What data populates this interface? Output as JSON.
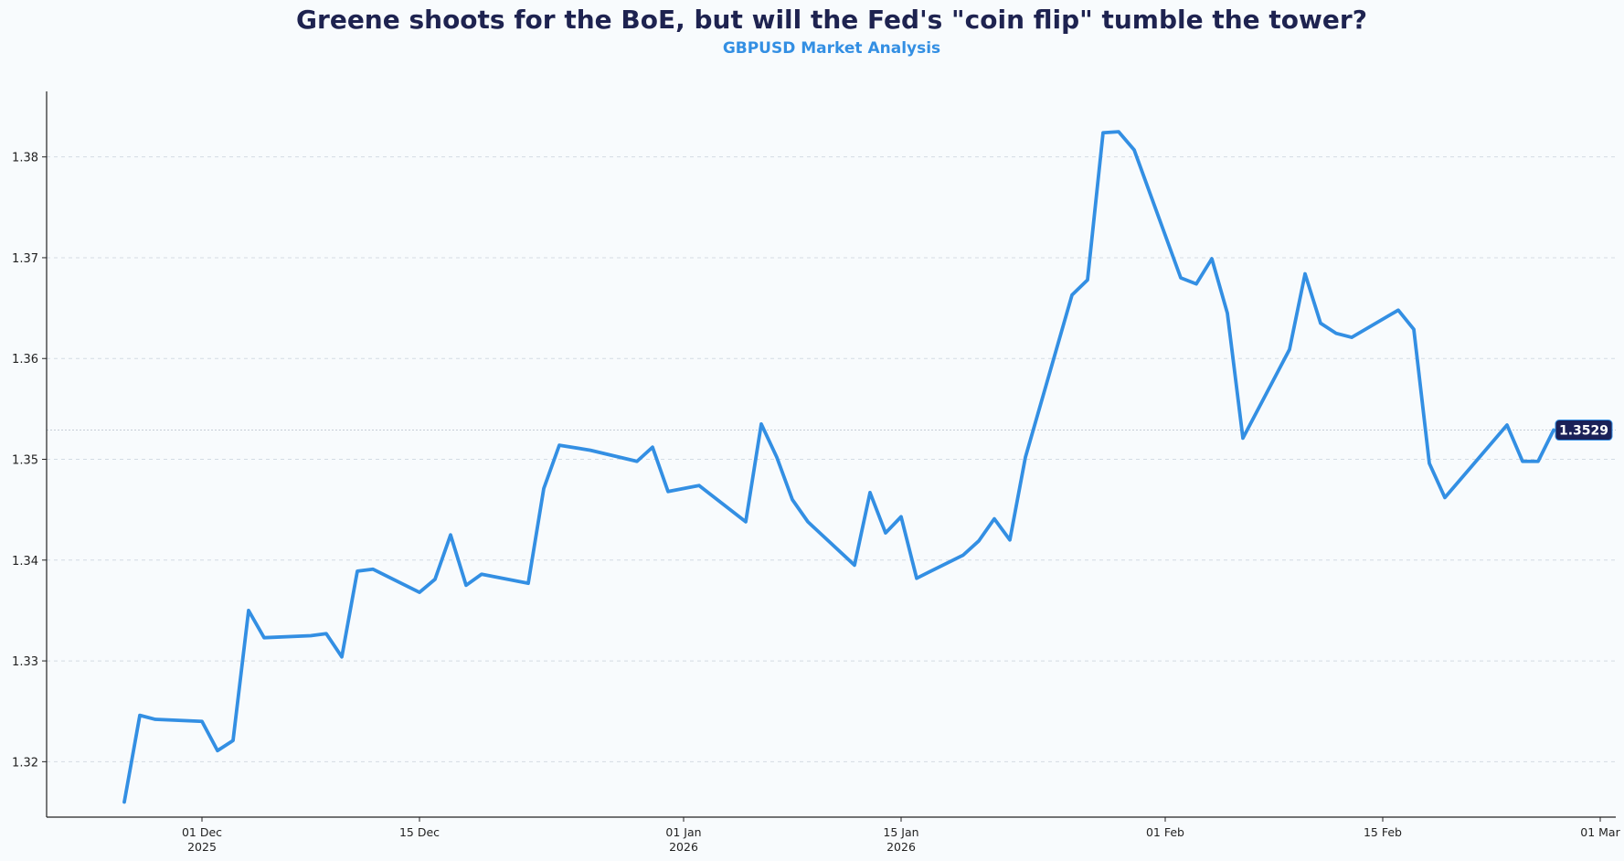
{
  "chart_data": {
    "type": "line",
    "title": "Greene shoots for the BoE, but will the Fed's \"coin flip\" tumble the tower?",
    "subtitle": "GBPUSD Market Analysis",
    "xlabel": "",
    "ylabel": "",
    "ylim": [
      1.3145,
      1.3865
    ],
    "xlim": [
      "2025-11-21",
      "2026-03-02"
    ],
    "grid": "horizontal-dashed",
    "yticks": [
      1.32,
      1.33,
      1.34,
      1.35,
      1.36,
      1.37,
      1.38
    ],
    "ytick_labels": [
      "1.32",
      "1.33",
      "1.34",
      "1.35",
      "1.36",
      "1.37",
      "1.38"
    ],
    "xticks": [
      {
        "date": "2025-12-01",
        "line1": "01 Dec",
        "line2": "2025"
      },
      {
        "date": "2025-12-15",
        "line1": "15 Dec",
        "line2": ""
      },
      {
        "date": "2026-01-01",
        "line1": "01 Jan",
        "line2": "2026"
      },
      {
        "date": "2026-01-15",
        "line1": "15 Jan",
        "line2": "2026"
      },
      {
        "date": "2026-02-01",
        "line1": "01 Feb",
        "line2": ""
      },
      {
        "date": "2026-02-15",
        "line1": "15 Feb",
        "line2": ""
      },
      {
        "date": "2026-03-01",
        "line1": "01 Mar",
        "line2": ""
      }
    ],
    "series": [
      {
        "color": "#338fe3",
        "points": [
          [
            "2025-11-26",
            1.316
          ],
          [
            "2025-11-27",
            1.3246
          ],
          [
            "2025-11-28",
            1.3242
          ],
          [
            "2025-12-01",
            1.324
          ],
          [
            "2025-12-02",
            1.3211
          ],
          [
            "2025-12-03",
            1.3221
          ],
          [
            "2025-12-04",
            1.335
          ],
          [
            "2025-12-05",
            1.3323
          ],
          [
            "2025-12-08",
            1.3325
          ],
          [
            "2025-12-09",
            1.3327
          ],
          [
            "2025-12-10",
            1.3304
          ],
          [
            "2025-12-11",
            1.3389
          ],
          [
            "2025-12-12",
            1.3391
          ],
          [
            "2025-12-15",
            1.3368
          ],
          [
            "2025-12-16",
            1.3381
          ],
          [
            "2025-12-17",
            1.3425
          ],
          [
            "2025-12-18",
            1.3375
          ],
          [
            "2025-12-19",
            1.3386
          ],
          [
            "2025-12-22",
            1.3377
          ],
          [
            "2025-12-23",
            1.3471
          ],
          [
            "2025-12-24",
            1.3514
          ],
          [
            "2025-12-26",
            1.3509
          ],
          [
            "2025-12-29",
            1.3498
          ],
          [
            "2025-12-30",
            1.3512
          ],
          [
            "2025-12-31",
            1.3468
          ],
          [
            "2026-01-02",
            1.3474
          ],
          [
            "2026-01-05",
            1.3438
          ],
          [
            "2026-01-06",
            1.3535
          ],
          [
            "2026-01-07",
            1.3502
          ],
          [
            "2026-01-08",
            1.346
          ],
          [
            "2026-01-09",
            1.3438
          ],
          [
            "2026-01-12",
            1.3395
          ],
          [
            "2026-01-13",
            1.3467
          ],
          [
            "2026-01-14",
            1.3427
          ],
          [
            "2026-01-15",
            1.3443
          ],
          [
            "2026-01-16",
            1.3382
          ],
          [
            "2026-01-19",
            1.3405
          ],
          [
            "2026-01-20",
            1.3419
          ],
          [
            "2026-01-21",
            1.3441
          ],
          [
            "2026-01-22",
            1.342
          ],
          [
            "2026-01-23",
            1.3502
          ],
          [
            "2026-01-26",
            1.3663
          ],
          [
            "2026-01-27",
            1.3678
          ],
          [
            "2026-01-28",
            1.3824
          ],
          [
            "2026-01-29",
            1.3825
          ],
          [
            "2026-01-30",
            1.3807
          ],
          [
            "2026-02-02",
            1.368
          ],
          [
            "2026-02-03",
            1.3674
          ],
          [
            "2026-02-04",
            1.3699
          ],
          [
            "2026-02-05",
            1.3645
          ],
          [
            "2026-02-06",
            1.3521
          ],
          [
            "2026-02-09",
            1.3609
          ],
          [
            "2026-02-10",
            1.3684
          ],
          [
            "2026-02-11",
            1.3635
          ],
          [
            "2026-02-12",
            1.3625
          ],
          [
            "2026-02-13",
            1.3621
          ],
          [
            "2026-02-16",
            1.3648
          ],
          [
            "2026-02-17",
            1.3629
          ],
          [
            "2026-02-18",
            1.3496
          ],
          [
            "2026-02-19",
            1.3462
          ],
          [
            "2026-02-23",
            1.3534
          ],
          [
            "2026-02-24",
            1.3498
          ],
          [
            "2026-02-25",
            1.3498
          ],
          [
            "2026-02-26",
            1.3529
          ]
        ]
      }
    ],
    "last_value_label": "1.3529",
    "last_value": 1.3529,
    "colors": {
      "title": "#1e2350",
      "subtitle": "#338fe3",
      "line": "#338fe3",
      "badge_bg": "#1b2157",
      "badge_text": "#ffffff",
      "background": "#f8fbfd",
      "grid": "#d3dbe3",
      "axis": "#222222"
    }
  }
}
